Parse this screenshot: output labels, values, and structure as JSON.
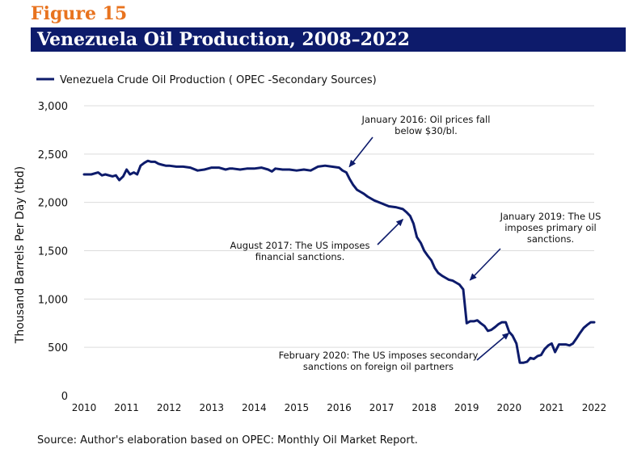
{
  "figure_label": "Figure 15",
  "title": "Venezuela Oil Production, 2008–2022",
  "source": "Source: Author's elaboration based on OPEC: Monthly Oil Market Report.",
  "colors": {
    "line": "#0d1b6b",
    "title_bg": "#0d1b6b",
    "figure_label": "#e8731f",
    "grid": "#dcdcdc"
  },
  "chart_data": {
    "type": "line",
    "ylabel": "Thousand Barrels Per Day (tbd)",
    "xlabel": "",
    "ylim": [
      0,
      3000
    ],
    "xlim": [
      2010,
      2022
    ],
    "y_ticks": [
      0,
      500,
      1000,
      1500,
      2000,
      2500,
      3000
    ],
    "y_tick_labels": [
      "0",
      "500",
      "1,000",
      "1,500",
      "2,000",
      "2,500",
      "3,000"
    ],
    "x_ticks": [
      2010,
      2011,
      2012,
      2013,
      2014,
      2015,
      2016,
      2017,
      2018,
      2019,
      2020,
      2021,
      2022
    ],
    "x_tick_labels": [
      "2010",
      "2011",
      "2012",
      "2013",
      "2014",
      "2015",
      "2016",
      "2017",
      "2018",
      "2019",
      "2020",
      "2021",
      "2022"
    ],
    "grid": "horizontal",
    "legend_position": "top-left",
    "series": [
      {
        "name": "Venezuela Crude Oil Production ( OPEC -Secondary Sources)",
        "x": [
          2010.0,
          2010.17,
          2010.33,
          2010.42,
          2010.5,
          2010.67,
          2010.75,
          2010.83,
          2010.92,
          2011.0,
          2011.08,
          2011.17,
          2011.25,
          2011.33,
          2011.42,
          2011.5,
          2011.58,
          2011.67,
          2011.75,
          2011.83,
          2011.92,
          2012.0,
          2012.17,
          2012.33,
          2012.5,
          2012.67,
          2012.83,
          2013.0,
          2013.17,
          2013.33,
          2013.42,
          2013.5,
          2013.67,
          2013.83,
          2014.0,
          2014.17,
          2014.33,
          2014.42,
          2014.5,
          2014.67,
          2014.83,
          2015.0,
          2015.17,
          2015.33,
          2015.5,
          2015.67,
          2015.83,
          2016.0,
          2016.08,
          2016.17,
          2016.25,
          2016.33,
          2016.42,
          2016.5,
          2016.58,
          2016.67,
          2016.83,
          2017.0,
          2017.17,
          2017.33,
          2017.42,
          2017.5,
          2017.58,
          2017.67,
          2017.75,
          2017.83,
          2017.92,
          2018.0,
          2018.08,
          2018.17,
          2018.25,
          2018.33,
          2018.42,
          2018.5,
          2018.58,
          2018.67,
          2018.75,
          2018.83,
          2018.92,
          2019.0,
          2019.08,
          2019.17,
          2019.25,
          2019.33,
          2019.42,
          2019.5,
          2019.58,
          2019.67,
          2019.75,
          2019.83,
          2019.92,
          2020.0,
          2020.08,
          2020.17,
          2020.25,
          2020.33,
          2020.42,
          2020.5,
          2020.58,
          2020.67,
          2020.75,
          2020.83,
          2020.92,
          2021.0,
          2021.08,
          2021.17,
          2021.25,
          2021.33,
          2021.42,
          2021.5,
          2021.58,
          2021.67,
          2021.75,
          2021.83,
          2021.92,
          2022.0
        ],
        "values": [
          2290,
          2290,
          2310,
          2280,
          2290,
          2270,
          2280,
          2230,
          2270,
          2340,
          2290,
          2310,
          2290,
          2380,
          2410,
          2430,
          2420,
          2420,
          2400,
          2390,
          2380,
          2380,
          2370,
          2370,
          2360,
          2330,
          2340,
          2360,
          2360,
          2340,
          2350,
          2350,
          2340,
          2350,
          2350,
          2360,
          2340,
          2320,
          2350,
          2340,
          2340,
          2330,
          2340,
          2330,
          2370,
          2380,
          2370,
          2360,
          2330,
          2310,
          2240,
          2180,
          2130,
          2110,
          2090,
          2060,
          2020,
          1990,
          1960,
          1950,
          1940,
          1930,
          1900,
          1860,
          1780,
          1640,
          1580,
          1500,
          1450,
          1400,
          1320,
          1270,
          1240,
          1220,
          1200,
          1190,
          1170,
          1150,
          1100,
          750,
          770,
          770,
          780,
          750,
          720,
          670,
          680,
          710,
          740,
          760,
          760,
          660,
          620,
          540,
          340,
          340,
          350,
          390,
          380,
          410,
          420,
          480,
          520,
          540,
          450,
          530,
          530,
          530,
          520,
          540,
          590,
          650,
          700,
          730,
          760,
          760
        ]
      }
    ],
    "annotations": [
      {
        "lines": [
          "January 2016: Oil prices fall",
          "below $30/bl."
        ],
        "arrow_to": {
          "x": 2016.17,
          "y": 2330
        }
      },
      {
        "lines": [
          "August 2017: The US imposes",
          "financial sanctions."
        ],
        "arrow_to": {
          "x": 2017.58,
          "y": 1860
        }
      },
      {
        "lines": [
          "January 2019: The US",
          "imposes primary oil",
          "sanctions."
        ],
        "arrow_to": {
          "x": 2019.0,
          "y": 1160
        }
      },
      {
        "lines": [
          "February 2020: The US imposes secondary",
          "sanctions on foreign oil partners"
        ],
        "arrow_to": {
          "x": 2020.08,
          "y": 680
        }
      }
    ]
  }
}
